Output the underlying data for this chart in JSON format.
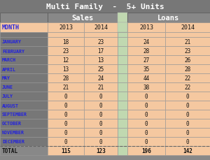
{
  "title": "Multi Family  -  5+ Units",
  "months": [
    "JANUARY",
    "FEBRUARY",
    "MARCH",
    "APRIL",
    "MAY",
    "JUNE",
    "JULY",
    "AUGUST",
    "SEPTEMBER",
    "OCTOBER",
    "NOVEMBER",
    "DECEMBER",
    "TOTAL"
  ],
  "sales_2013": [
    18,
    23,
    12,
    13,
    28,
    21,
    0,
    0,
    0,
    0,
    0,
    0,
    115
  ],
  "sales_2014": [
    23,
    17,
    13,
    25,
    24,
    21,
    0,
    0,
    0,
    0,
    0,
    0,
    123
  ],
  "loans_2013": [
    24,
    28,
    27,
    35,
    44,
    38,
    0,
    0,
    0,
    0,
    0,
    0,
    196
  ],
  "loans_2014": [
    21,
    23,
    26,
    28,
    22,
    22,
    0,
    0,
    0,
    0,
    0,
    0,
    142
  ],
  "title_bg": "#777777",
  "title_fg": "#ffffff",
  "header_bg": "#888888",
  "header_fg": "#ffffff",
  "subheader_bg": "#999999",
  "month_bg": "#777777",
  "month_fg": "#2222dd",
  "cell_bg": "#f5c8a0",
  "cell_fg": "#111111",
  "total_bg": "#888888",
  "total_fg": "#111111",
  "separator_bg": "#c0d8b0",
  "dashed_line_color": "#666666",
  "outer_bg": "#888888"
}
